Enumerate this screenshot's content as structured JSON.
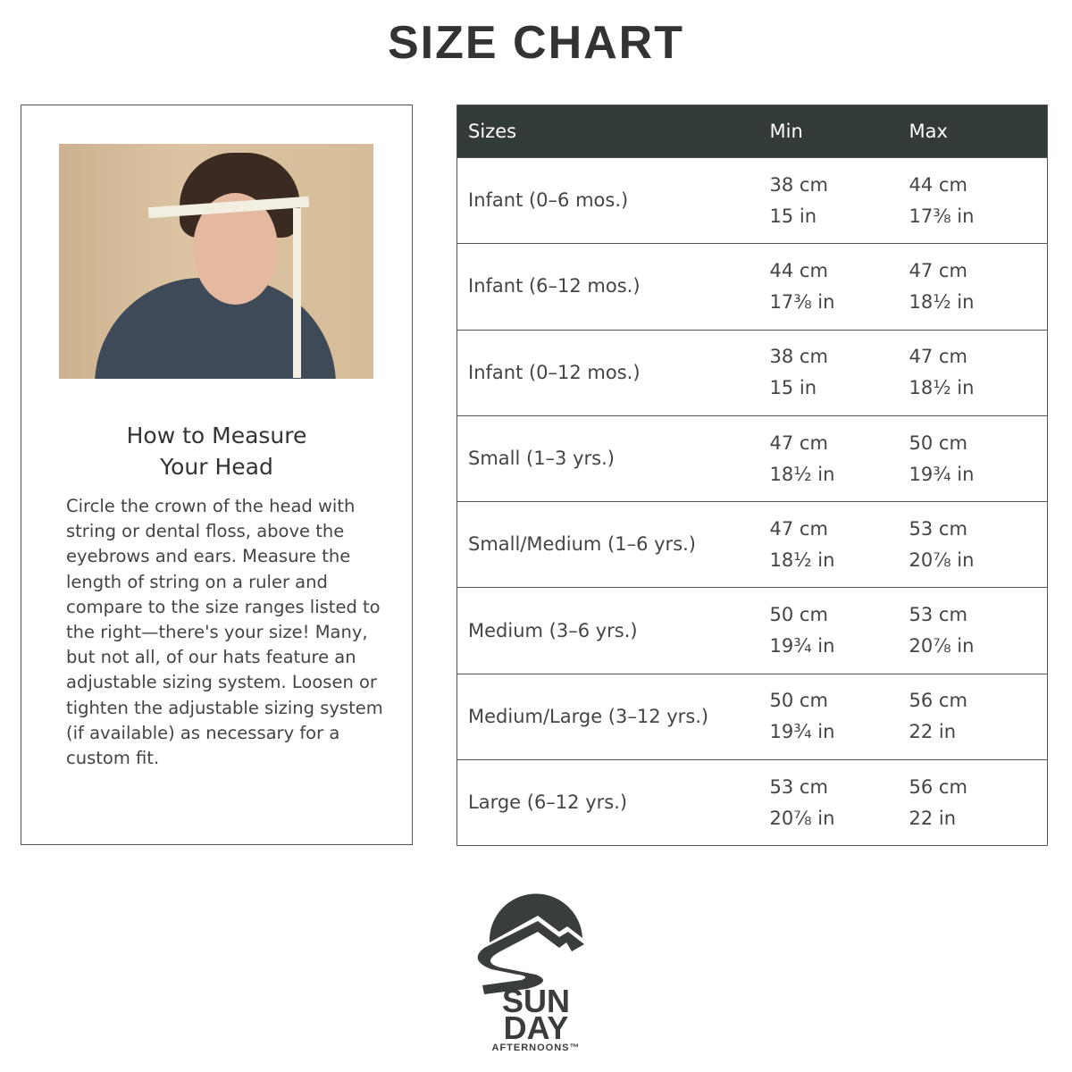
{
  "title": "SIZE CHART",
  "guide": {
    "heading": "How to Measure\nYour Head",
    "body": "Circle the crown of the head with string or dental floss, above the eyebrows and ears. Measure the length of string on a ruler and compare to the size ranges listed to the right—there's your size! Many, but not all, of our hats feature an adjustable sizing system. Loosen or tighten the adjustable sizing system (if available) as necessary for a custom fit."
  },
  "table": {
    "headers": [
      "Sizes",
      "Min",
      "Max"
    ],
    "rows": [
      {
        "size": "Infant (0–6 mos.)",
        "min_cm": "38 cm",
        "min_in": "15 in",
        "max_cm": "44 cm",
        "max_in": "17⅜ in"
      },
      {
        "size": "Infant (6–12 mos.)",
        "min_cm": "44 cm",
        "min_in": "17⅜ in",
        "max_cm": "47 cm",
        "max_in": "18½ in"
      },
      {
        "size": "Infant (0–12 mos.)",
        "min_cm": "38 cm",
        "min_in": "15 in",
        "max_cm": "47 cm",
        "max_in": "18½ in"
      },
      {
        "size": "Small (1–3 yrs.)",
        "min_cm": "47 cm",
        "min_in": "18½ in",
        "max_cm": "50 cm",
        "max_in": "19¾ in"
      },
      {
        "size": "Small/Medium (1–6 yrs.)",
        "min_cm": "47 cm",
        "min_in": "18½ in",
        "max_cm": "53 cm",
        "max_in": "20⅞ in"
      },
      {
        "size": "Medium (3–6 yrs.)",
        "min_cm": "50 cm",
        "min_in": "19¾ in",
        "max_cm": "53 cm",
        "max_in": "20⅞ in"
      },
      {
        "size": "Medium/Large (3–12 yrs.)",
        "min_cm": "50 cm",
        "min_in": "19¾ in",
        "max_cm": "56 cm",
        "max_in": "22 in"
      },
      {
        "size": "Large (6–12 yrs.)",
        "min_cm": "53 cm",
        "min_in": "20⅞ in",
        "max_cm": "56 cm",
        "max_in": "22 in"
      }
    ]
  },
  "logo": {
    "line1": "SUN",
    "line2": "DAY",
    "line3": "AFTERNOONS™"
  },
  "colors": {
    "header_bg": "#333a3a",
    "text": "#444444"
  }
}
